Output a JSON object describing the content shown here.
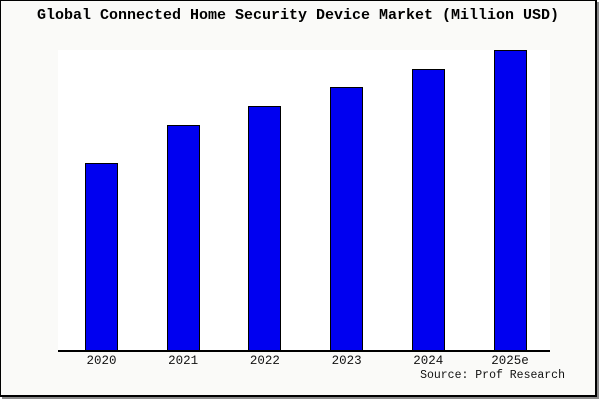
{
  "title": "Global Connected Home Security Device Market (Million USD)",
  "source_label": "Source: Prof Research",
  "colors": {
    "bar_fill": "#0000f0",
    "bar_border": "#000000",
    "plot_background": "#ffffff",
    "page_background": "#fafaf8",
    "axis": "#000000"
  },
  "chart_data": {
    "type": "bar",
    "title": "Global Connected Home Security Device Market (Million USD)",
    "categories": [
      "2020",
      "2021",
      "2022",
      "2023",
      "2024",
      "2025e"
    ],
    "values": [
      188,
      226,
      245,
      264,
      282,
      301
    ],
    "value_note": "No y-axis ticks, labels or gridlines are shown in the chart; values are relative bar heights estimated in pixels (baseline 0 at x-axis, tallest bar = 301).",
    "xlabel": "",
    "ylabel": "",
    "ylim": [
      0,
      301
    ],
    "grid": false,
    "legend": false,
    "bar_color": "#0000f0",
    "annotation": "Source: Prof Research"
  }
}
